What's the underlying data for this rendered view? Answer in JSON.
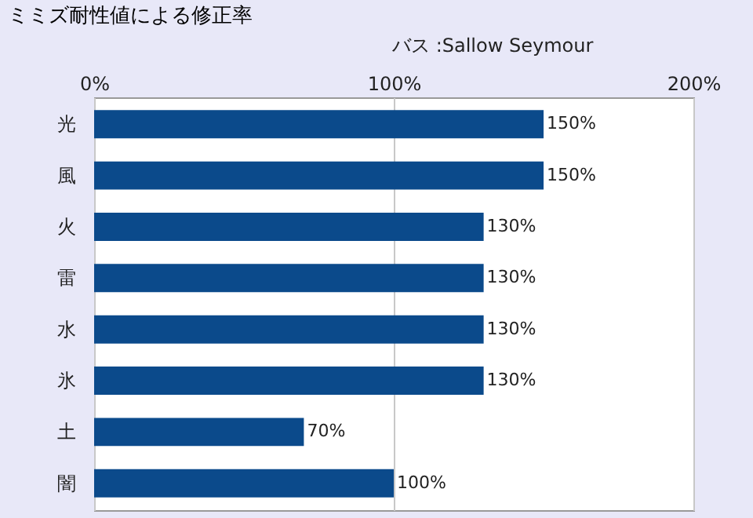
{
  "chart_data": {
    "type": "bar",
    "orientation": "horizontal",
    "title": "ミミズ耐性値による修正率",
    "subtitle": "バス :Sallow Seymour",
    "categories": [
      "光",
      "風",
      "火",
      "雷",
      "水",
      "氷",
      "土",
      "闇"
    ],
    "values": [
      150,
      150,
      130,
      130,
      130,
      130,
      70,
      100
    ],
    "value_labels": [
      "150%",
      "150%",
      "130%",
      "130%",
      "130%",
      "130%",
      "70%",
      "100%"
    ],
    "color": "#0b4a8b",
    "xlim": [
      0,
      200
    ],
    "xticks": [
      {
        "value": 0,
        "label": "0%"
      },
      {
        "value": 100,
        "label": "100%"
      },
      {
        "value": 200,
        "label": "200%"
      }
    ],
    "grid": "x"
  }
}
